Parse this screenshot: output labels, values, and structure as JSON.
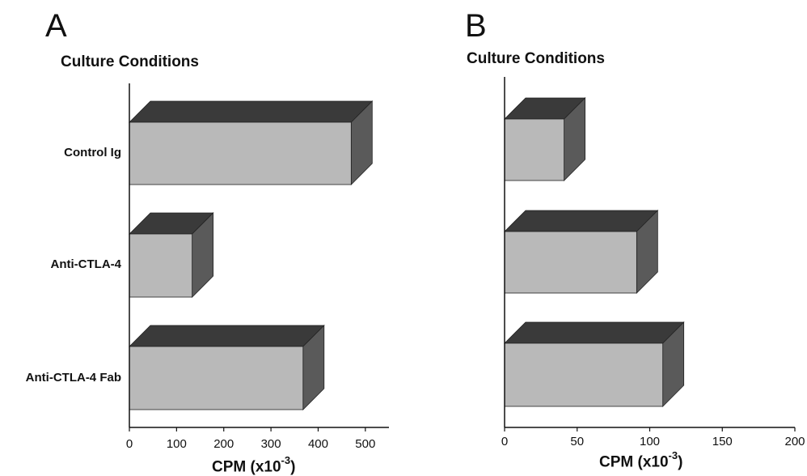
{
  "chart_data": [
    {
      "type": "bar",
      "panel": "A",
      "orientation": "horizontal",
      "style": "3d",
      "title": "Culture Conditions",
      "categories": [
        "Control Ig",
        "Anti-CTLA-4",
        "Anti-CTLA-4 Fab"
      ],
      "values": [
        470,
        133,
        368
      ],
      "xlabel_main": "CPM (x10",
      "xlabel_exp": "-3",
      "xlabel_close": ")",
      "xlim": [
        0,
        550
      ],
      "xticks": [
        0,
        100,
        200,
        300,
        400,
        500
      ],
      "grid": false
    },
    {
      "type": "bar",
      "panel": "B",
      "orientation": "horizontal",
      "style": "3d",
      "title": "Culture Conditions",
      "categories": [
        "Control Ig",
        "Anti-CTLA-4",
        "Anti-CTLA-4 Fab"
      ],
      "values": [
        41,
        91,
        109
      ],
      "xlabel_main": "CPM (x10",
      "xlabel_exp": "-3",
      "xlabel_close": ")",
      "xlim": [
        0,
        200
      ],
      "xticks": [
        0,
        50,
        100,
        150,
        200
      ],
      "grid": false
    }
  ],
  "colors": {
    "bar_front": "#b9b9b9",
    "bar_top": "#3a3a3a",
    "bar_side": "#5a5a5a",
    "axis": "#111111"
  }
}
